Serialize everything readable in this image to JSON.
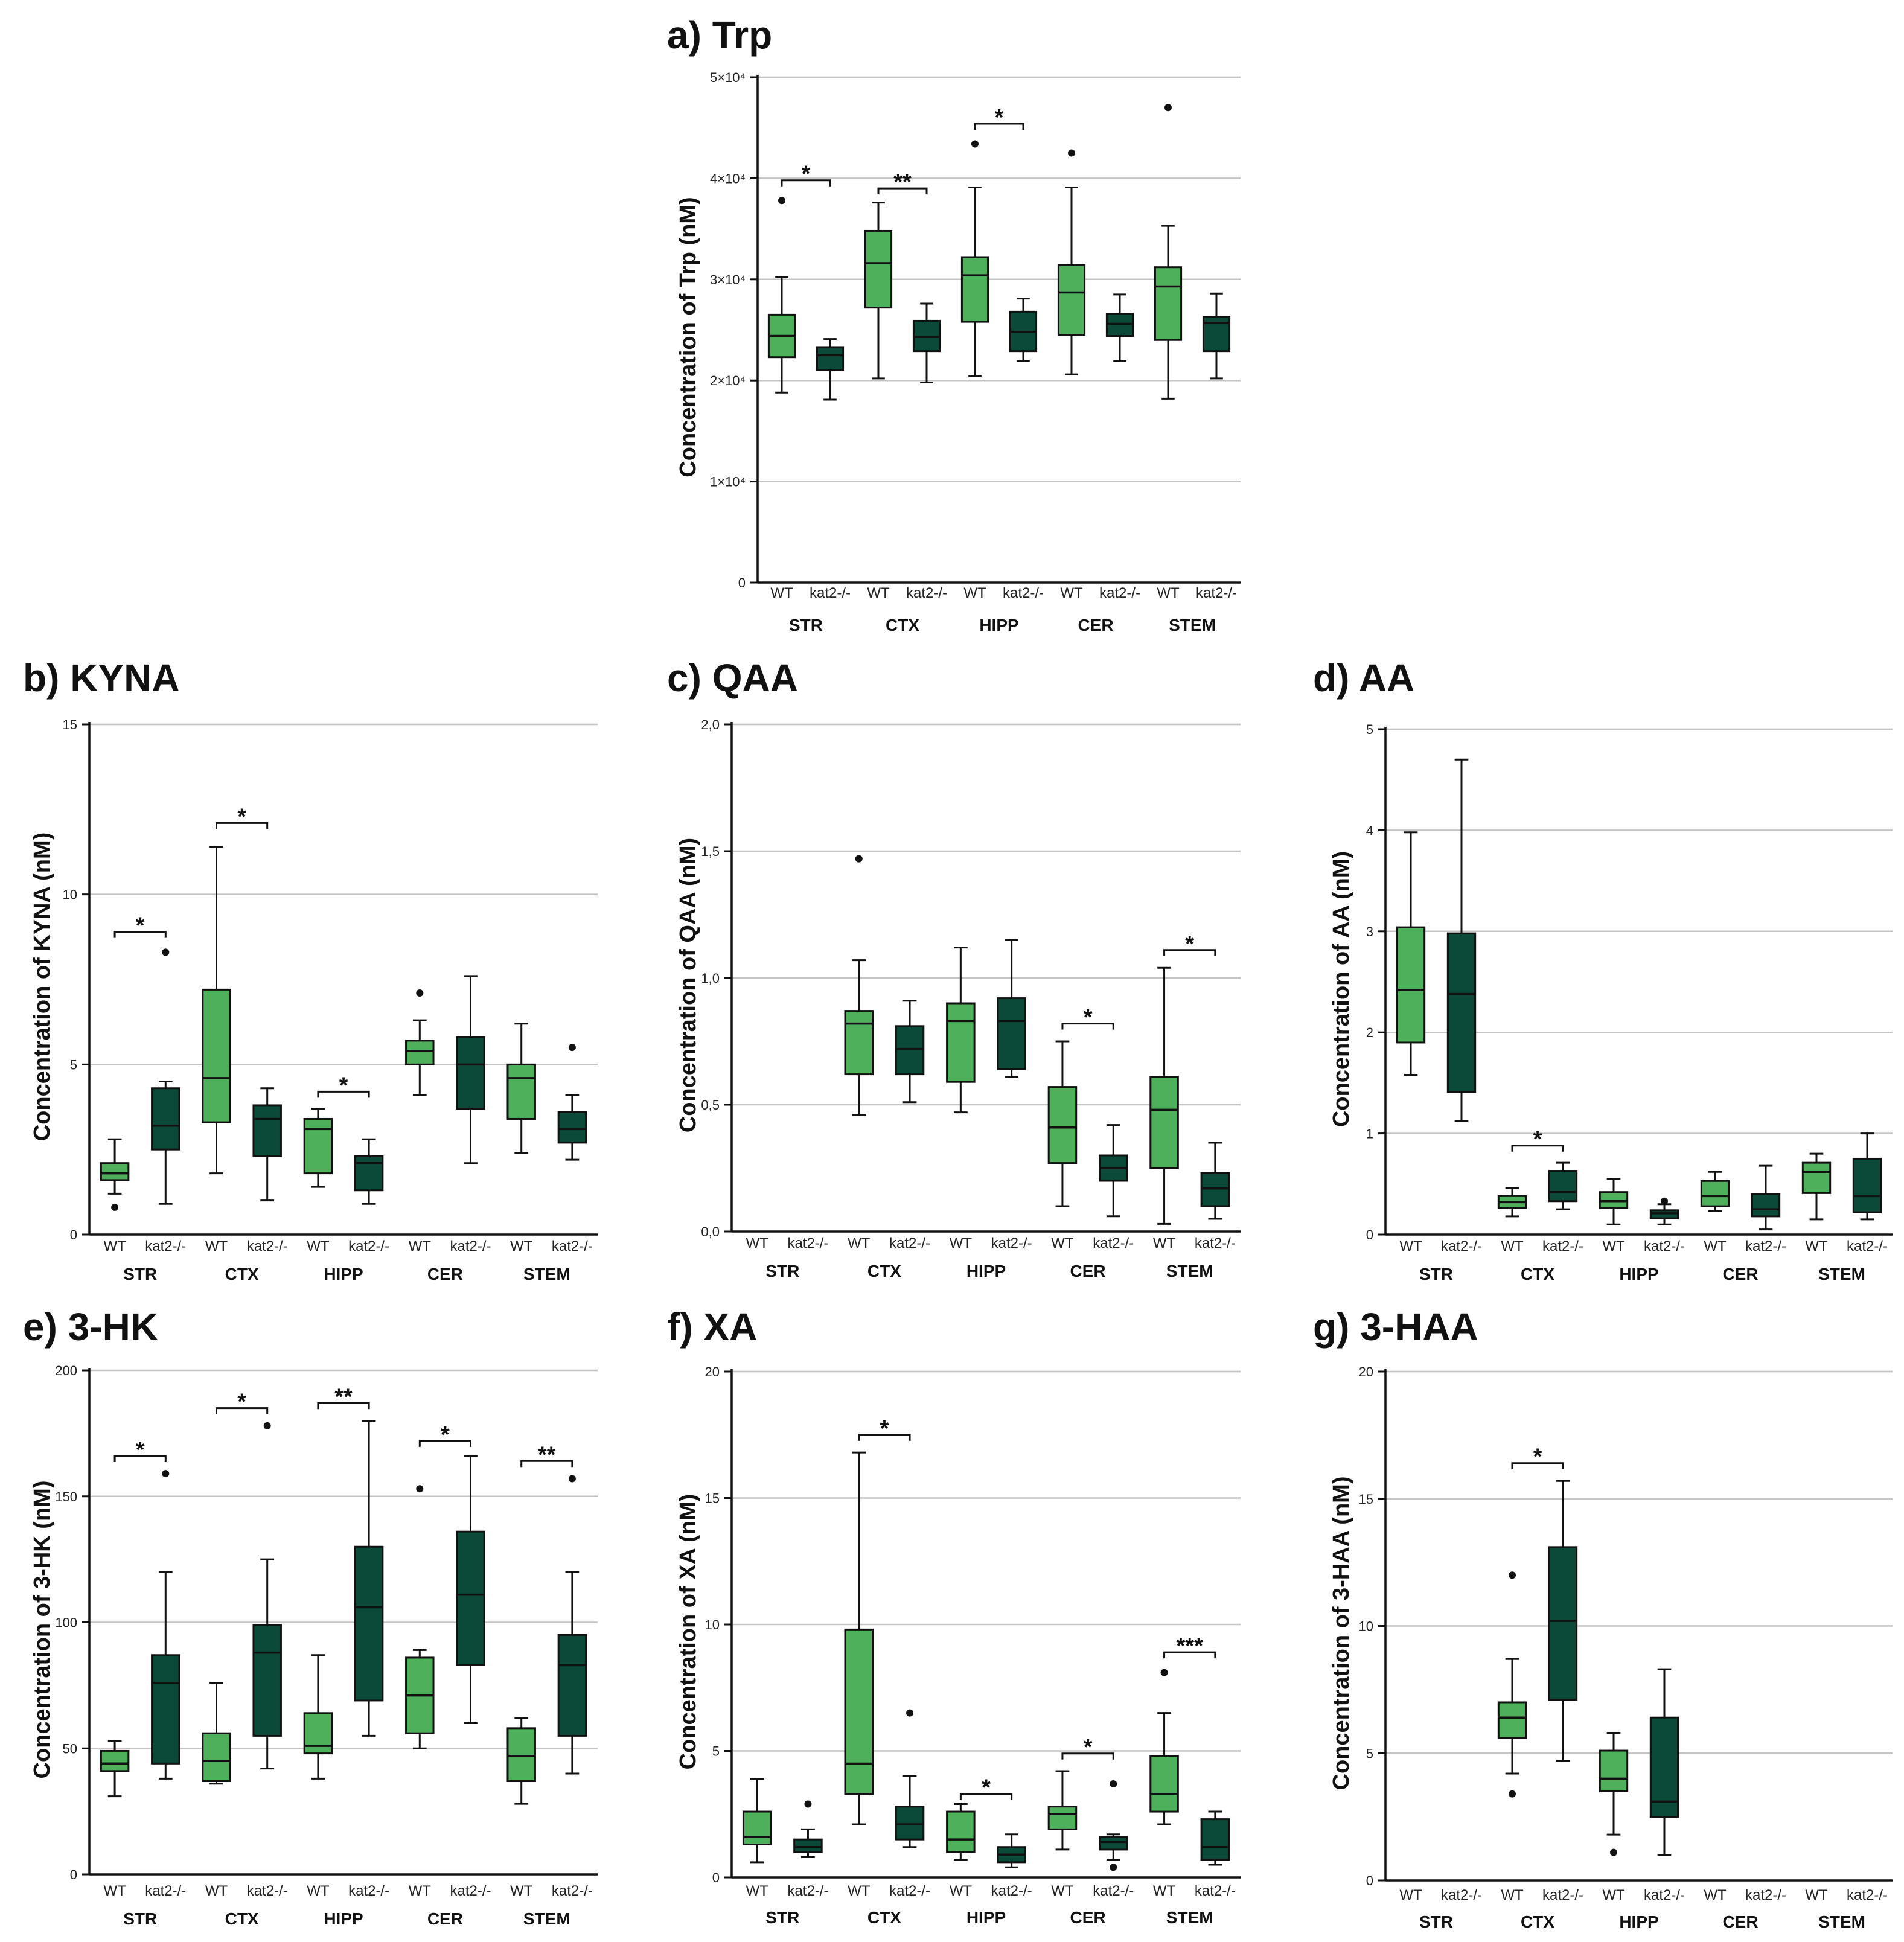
{
  "figure": {
    "colors": {
      "WT": "#4fb05b",
      "kat2-/-": "#0b4a38",
      "grid": "#c4c4c4",
      "axis": "#111111"
    },
    "regions": [
      "STR",
      "CTX",
      "HIPP",
      "CER",
      "STEM"
    ],
    "groups": [
      "WT",
      "kat2-/-"
    ]
  },
  "chart_data": [
    {
      "id": "a",
      "type": "box",
      "title": "a) Trp",
      "ylabel": "Concentration of Trp (nM)",
      "ylim": [
        0,
        50000
      ],
      "yticks": [
        0,
        10000,
        20000,
        30000,
        40000,
        50000
      ],
      "ytick_labels": [
        "0",
        "1×10⁴",
        "2×10⁴",
        "3×10⁴",
        "4×10⁴",
        "5×10⁴"
      ],
      "grid": true,
      "boxes": [
        {
          "region": "STR",
          "group": "WT",
          "min": 18800,
          "q1": 22300,
          "median": 24400,
          "q3": 26500,
          "max": 30200,
          "outliers": [
            37800
          ]
        },
        {
          "region": "STR",
          "group": "kat2-/-",
          "min": 18100,
          "q1": 21000,
          "median": 22500,
          "q3": 23300,
          "max": 24100,
          "outliers": []
        },
        {
          "region": "CTX",
          "group": "WT",
          "min": 20200,
          "q1": 27200,
          "median": 31600,
          "q3": 34800,
          "max": 37600,
          "outliers": []
        },
        {
          "region": "CTX",
          "group": "kat2-/-",
          "min": 19800,
          "q1": 22900,
          "median": 24300,
          "q3": 25900,
          "max": 27600,
          "outliers": []
        },
        {
          "region": "HIPP",
          "group": "WT",
          "min": 20400,
          "q1": 25800,
          "median": 30400,
          "q3": 32200,
          "max": 39100,
          "outliers": [
            43400
          ]
        },
        {
          "region": "HIPP",
          "group": "kat2-/-",
          "min": 21900,
          "q1": 22900,
          "median": 24800,
          "q3": 26800,
          "max": 28100,
          "outliers": []
        },
        {
          "region": "CER",
          "group": "WT",
          "min": 20600,
          "q1": 24500,
          "median": 28700,
          "q3": 31400,
          "max": 39100,
          "outliers": [
            42500
          ]
        },
        {
          "region": "CER",
          "group": "kat2-/-",
          "min": 21900,
          "q1": 24400,
          "median": 25600,
          "q3": 26600,
          "max": 28500,
          "outliers": []
        },
        {
          "region": "STEM",
          "group": "WT",
          "min": 18200,
          "q1": 24000,
          "median": 29300,
          "q3": 31200,
          "max": 35300,
          "outliers": [
            47000
          ]
        },
        {
          "region": "STEM",
          "group": "kat2-/-",
          "min": 20200,
          "q1": 22900,
          "median": 25700,
          "q3": 26300,
          "max": 28600,
          "outliers": []
        }
      ],
      "significance": [
        {
          "region": "STR",
          "label": "*",
          "y": 39800
        },
        {
          "region": "CTX",
          "label": "**",
          "y": 39000
        },
        {
          "region": "HIPP",
          "label": "*",
          "y": 45400
        }
      ]
    },
    {
      "id": "b",
      "type": "box",
      "title": "b) KYNA",
      "ylabel": "Concentration of KYNA (nM)",
      "ylim": [
        0,
        15
      ],
      "yticks": [
        0,
        5,
        10,
        15
      ],
      "ytick_labels": [
        "0",
        "5",
        "10",
        "15"
      ],
      "grid": true,
      "boxes": [
        {
          "region": "STR",
          "group": "WT",
          "min": 1.2,
          "q1": 1.6,
          "median": 1.8,
          "q3": 2.1,
          "max": 2.8,
          "outliers": [
            0.8
          ]
        },
        {
          "region": "STR",
          "group": "kat2-/-",
          "min": 0.9,
          "q1": 2.5,
          "median": 3.2,
          "q3": 4.3,
          "max": 4.5,
          "outliers": [
            8.3
          ]
        },
        {
          "region": "CTX",
          "group": "WT",
          "min": 1.8,
          "q1": 3.3,
          "median": 4.6,
          "q3": 7.2,
          "max": 11.4,
          "outliers": []
        },
        {
          "region": "CTX",
          "group": "kat2-/-",
          "min": 1.0,
          "q1": 2.3,
          "median": 3.4,
          "q3": 3.8,
          "max": 4.3,
          "outliers": []
        },
        {
          "region": "HIPP",
          "group": "WT",
          "min": 1.4,
          "q1": 1.8,
          "median": 3.1,
          "q3": 3.4,
          "max": 3.7,
          "outliers": []
        },
        {
          "region": "HIPP",
          "group": "kat2-/-",
          "min": 0.9,
          "q1": 1.3,
          "median": 2.1,
          "q3": 2.3,
          "max": 2.8,
          "outliers": []
        },
        {
          "region": "CER",
          "group": "WT",
          "min": 4.1,
          "q1": 5.0,
          "median": 5.4,
          "q3": 5.7,
          "max": 6.3,
          "outliers": [
            7.1
          ]
        },
        {
          "region": "CER",
          "group": "kat2-/-",
          "min": 2.1,
          "q1": 3.7,
          "median": 5.0,
          "q3": 5.8,
          "max": 7.6,
          "outliers": []
        },
        {
          "region": "STEM",
          "group": "WT",
          "min": 2.4,
          "q1": 3.4,
          "median": 4.6,
          "q3": 5.0,
          "max": 6.2,
          "outliers": []
        },
        {
          "region": "STEM",
          "group": "kat2-/-",
          "min": 2.2,
          "q1": 2.7,
          "median": 3.1,
          "q3": 3.6,
          "max": 4.1,
          "outliers": [
            5.5
          ]
        }
      ],
      "significance": [
        {
          "region": "STR",
          "label": "*",
          "y": 8.9
        },
        {
          "region": "CTX",
          "label": "*",
          "y": 12.1
        },
        {
          "region": "HIPP",
          "label": "*",
          "y": 4.2
        }
      ]
    },
    {
      "id": "c",
      "type": "box",
      "title": "c) QAA",
      "ylabel": "Concentration of QAA (nM)",
      "ylim": [
        0,
        2.0
      ],
      "yticks": [
        0,
        0.5,
        1.0,
        1.5,
        2.0
      ],
      "ytick_labels": [
        "0,0",
        "0,5",
        "1,0",
        "1,5",
        "2,0"
      ],
      "grid": true,
      "boxes": [
        {
          "region": "CTX",
          "group": "WT",
          "min": 0.46,
          "q1": 0.62,
          "median": 0.82,
          "q3": 0.87,
          "max": 1.07,
          "outliers": [
            1.47
          ]
        },
        {
          "region": "CTX",
          "group": "kat2-/-",
          "min": 0.51,
          "q1": 0.62,
          "median": 0.72,
          "q3": 0.81,
          "max": 0.91,
          "outliers": []
        },
        {
          "region": "HIPP",
          "group": "WT",
          "min": 0.47,
          "q1": 0.59,
          "median": 0.83,
          "q3": 0.9,
          "max": 1.12,
          "outliers": []
        },
        {
          "region": "HIPP",
          "group": "kat2-/-",
          "min": 0.61,
          "q1": 0.64,
          "median": 0.83,
          "q3": 0.92,
          "max": 1.15,
          "outliers": []
        },
        {
          "region": "CER",
          "group": "WT",
          "min": 0.1,
          "q1": 0.27,
          "median": 0.41,
          "q3": 0.57,
          "max": 0.75,
          "outliers": []
        },
        {
          "region": "CER",
          "group": "kat2-/-",
          "min": 0.06,
          "q1": 0.2,
          "median": 0.25,
          "q3": 0.3,
          "max": 0.42,
          "outliers": []
        },
        {
          "region": "STEM",
          "group": "WT",
          "min": 0.03,
          "q1": 0.25,
          "median": 0.48,
          "q3": 0.61,
          "max": 1.04,
          "outliers": []
        },
        {
          "region": "STEM",
          "group": "kat2-/-",
          "min": 0.05,
          "q1": 0.1,
          "median": 0.17,
          "q3": 0.23,
          "max": 0.35,
          "outliers": []
        }
      ],
      "significance": [
        {
          "region": "CER",
          "label": "*",
          "y": 0.82
        },
        {
          "region": "STEM",
          "label": "*",
          "y": 1.11
        }
      ]
    },
    {
      "id": "d",
      "type": "box",
      "title": "d) AA",
      "ylabel": "Concentration of AA (nM)",
      "ylim": [
        0,
        5
      ],
      "yticks": [
        0,
        1,
        2,
        3,
        4,
        5
      ],
      "ytick_labels": [
        "0",
        "1",
        "2",
        "3",
        "4",
        "5"
      ],
      "grid": true,
      "boxes": [
        {
          "region": "STR",
          "group": "WT",
          "min": 1.58,
          "q1": 1.9,
          "median": 2.42,
          "q3": 3.04,
          "max": 3.98,
          "outliers": []
        },
        {
          "region": "STR",
          "group": "kat2-/-",
          "min": 1.12,
          "q1": 1.41,
          "median": 2.38,
          "q3": 2.98,
          "max": 4.7,
          "outliers": []
        },
        {
          "region": "CTX",
          "group": "WT",
          "min": 0.18,
          "q1": 0.26,
          "median": 0.32,
          "q3": 0.38,
          "max": 0.46,
          "outliers": []
        },
        {
          "region": "CTX",
          "group": "kat2-/-",
          "min": 0.25,
          "q1": 0.33,
          "median": 0.42,
          "q3": 0.63,
          "max": 0.71,
          "outliers": []
        },
        {
          "region": "HIPP",
          "group": "WT",
          "min": 0.1,
          "q1": 0.26,
          "median": 0.33,
          "q3": 0.42,
          "max": 0.55,
          "outliers": []
        },
        {
          "region": "HIPP",
          "group": "kat2-/-",
          "min": 0.1,
          "q1": 0.16,
          "median": 0.21,
          "q3": 0.24,
          "max": 0.3,
          "outliers": [
            0.33
          ]
        },
        {
          "region": "CER",
          "group": "WT",
          "min": 0.23,
          "q1": 0.28,
          "median": 0.38,
          "q3": 0.53,
          "max": 0.62,
          "outliers": []
        },
        {
          "region": "CER",
          "group": "kat2-/-",
          "min": 0.05,
          "q1": 0.18,
          "median": 0.25,
          "q3": 0.4,
          "max": 0.68,
          "outliers": []
        },
        {
          "region": "STEM",
          "group": "WT",
          "min": 0.15,
          "q1": 0.41,
          "median": 0.62,
          "q3": 0.71,
          "max": 0.8,
          "outliers": []
        },
        {
          "region": "STEM",
          "group": "kat2-/-",
          "min": 0.15,
          "q1": 0.22,
          "median": 0.38,
          "q3": 0.75,
          "max": 1.0,
          "outliers": []
        }
      ],
      "significance": [
        {
          "region": "CTX",
          "label": "*",
          "y": 0.88
        }
      ]
    },
    {
      "id": "e",
      "type": "box",
      "title": "e) 3-HK",
      "ylabel": "Concentration of 3-HK (nM)",
      "ylim": [
        0,
        200
      ],
      "yticks": [
        0,
        50,
        100,
        150,
        200
      ],
      "ytick_labels": [
        "0",
        "50",
        "100",
        "150",
        "200"
      ],
      "grid": true,
      "boxes": [
        {
          "region": "STR",
          "group": "WT",
          "min": 31,
          "q1": 41,
          "median": 44,
          "q3": 49,
          "max": 53,
          "outliers": []
        },
        {
          "region": "STR",
          "group": "kat2-/-",
          "min": 38,
          "q1": 44,
          "median": 76,
          "q3": 87,
          "max": 120,
          "outliers": [
            159
          ]
        },
        {
          "region": "CTX",
          "group": "WT",
          "min": 36,
          "q1": 37,
          "median": 45,
          "q3": 56,
          "max": 76,
          "outliers": []
        },
        {
          "region": "CTX",
          "group": "kat2-/-",
          "min": 42,
          "q1": 55,
          "median": 88,
          "q3": 99,
          "max": 125,
          "outliers": [
            178
          ]
        },
        {
          "region": "HIPP",
          "group": "WT",
          "min": 38,
          "q1": 48,
          "median": 51,
          "q3": 64,
          "max": 87,
          "outliers": []
        },
        {
          "region": "HIPP",
          "group": "kat2-/-",
          "min": 55,
          "q1": 69,
          "median": 106,
          "q3": 130,
          "max": 180,
          "outliers": []
        },
        {
          "region": "CER",
          "group": "WT",
          "min": 50,
          "q1": 56,
          "median": 71,
          "q3": 86,
          "max": 89,
          "outliers": [
            153
          ]
        },
        {
          "region": "CER",
          "group": "kat2-/-",
          "min": 60,
          "q1": 83,
          "median": 111,
          "q3": 136,
          "max": 166,
          "outliers": []
        },
        {
          "region": "STEM",
          "group": "WT",
          "min": 28,
          "q1": 37,
          "median": 47,
          "q3": 58,
          "max": 62,
          "outliers": []
        },
        {
          "region": "STEM",
          "group": "kat2-/-",
          "min": 40,
          "q1": 55,
          "median": 83,
          "q3": 95,
          "max": 120,
          "outliers": [
            157
          ]
        }
      ],
      "significance": [
        {
          "region": "STR",
          "label": "*",
          "y": 166
        },
        {
          "region": "CTX",
          "label": "*",
          "y": 185
        },
        {
          "region": "HIPP",
          "label": "**",
          "y": 187
        },
        {
          "region": "CER",
          "label": "*",
          "y": 172
        },
        {
          "region": "STEM",
          "label": "**",
          "y": 164
        }
      ]
    },
    {
      "id": "f",
      "type": "box",
      "title": "f) XA",
      "ylabel": "Concentration of XA (nM)",
      "ylim": [
        0,
        20
      ],
      "yticks": [
        0,
        5,
        10,
        15,
        20
      ],
      "ytick_labels": [
        "0",
        "5",
        "10",
        "15",
        "20"
      ],
      "grid": true,
      "boxes": [
        {
          "region": "STR",
          "group": "WT",
          "min": 0.6,
          "q1": 1.3,
          "median": 1.6,
          "q3": 2.6,
          "max": 3.9,
          "outliers": []
        },
        {
          "region": "STR",
          "group": "kat2-/-",
          "min": 0.8,
          "q1": 1.0,
          "median": 1.2,
          "q3": 1.5,
          "max": 1.9,
          "outliers": [
            2.9
          ]
        },
        {
          "region": "CTX",
          "group": "WT",
          "min": 2.1,
          "q1": 3.3,
          "median": 4.5,
          "q3": 9.8,
          "max": 16.8,
          "outliers": []
        },
        {
          "region": "CTX",
          "group": "kat2-/-",
          "min": 1.2,
          "q1": 1.5,
          "median": 2.1,
          "q3": 2.8,
          "max": 4.0,
          "outliers": [
            6.5
          ]
        },
        {
          "region": "HIPP",
          "group": "WT",
          "min": 0.7,
          "q1": 1.0,
          "median": 1.5,
          "q3": 2.6,
          "max": 2.9,
          "outliers": []
        },
        {
          "region": "HIPP",
          "group": "kat2-/-",
          "min": 0.4,
          "q1": 0.6,
          "median": 0.9,
          "q3": 1.2,
          "max": 1.7,
          "outliers": []
        },
        {
          "region": "CER",
          "group": "WT",
          "min": 1.1,
          "q1": 1.9,
          "median": 2.5,
          "q3": 2.8,
          "max": 4.2,
          "outliers": []
        },
        {
          "region": "CER",
          "group": "kat2-/-",
          "min": 0.7,
          "q1": 1.1,
          "median": 1.4,
          "q3": 1.6,
          "max": 1.7,
          "outliers": [
            3.7,
            0.4
          ]
        },
        {
          "region": "STEM",
          "group": "WT",
          "min": 2.1,
          "q1": 2.6,
          "median": 3.3,
          "q3": 4.8,
          "max": 6.5,
          "outliers": [
            8.1
          ]
        },
        {
          "region": "STEM",
          "group": "kat2-/-",
          "min": 0.5,
          "q1": 0.7,
          "median": 1.2,
          "q3": 2.3,
          "max": 2.6,
          "outliers": []
        }
      ],
      "significance": [
        {
          "region": "CTX",
          "label": "*",
          "y": 17.5
        },
        {
          "region": "HIPP",
          "label": "*",
          "y": 3.3
        },
        {
          "region": "CER",
          "label": "*",
          "y": 4.9
        },
        {
          "region": "STEM",
          "label": "***",
          "y": 8.9
        }
      ]
    },
    {
      "id": "g",
      "type": "box",
      "title": "g) 3-HAA",
      "ylabel": "Concentration of 3-HAA (nM)",
      "ylim": [
        0,
        20
      ],
      "yticks": [
        0,
        5,
        10,
        15,
        20
      ],
      "ytick_labels": [
        "0",
        "5",
        "10",
        "15",
        "20"
      ],
      "grid": true,
      "boxes": [
        {
          "region": "CTX",
          "group": "WT",
          "min": 4.2,
          "q1": 5.6,
          "median": 6.4,
          "q3": 7.0,
          "max": 8.7,
          "outliers": [
            12.0,
            3.4
          ]
        },
        {
          "region": "CTX",
          "group": "kat2-/-",
          "min": 4.7,
          "q1": 7.1,
          "median": 10.2,
          "q3": 13.1,
          "max": 15.7,
          "outliers": []
        },
        {
          "region": "HIPP",
          "group": "WT",
          "min": 1.8,
          "q1": 3.5,
          "median": 4.0,
          "q3": 5.1,
          "max": 5.8,
          "outliers": [
            1.1
          ]
        },
        {
          "region": "HIPP",
          "group": "kat2-/-",
          "min": 1.0,
          "q1": 2.5,
          "median": 3.1,
          "q3": 6.4,
          "max": 8.3,
          "outliers": []
        }
      ],
      "significance": [
        {
          "region": "CTX",
          "label": "*",
          "y": 16.4
        }
      ]
    }
  ]
}
